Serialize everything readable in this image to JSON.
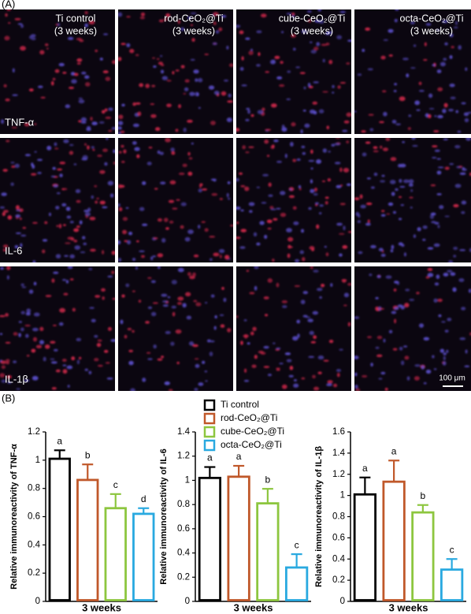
{
  "panel_labels": [
    "(A)",
    "(B)"
  ],
  "micrographs": {
    "columns": [
      {
        "name": "Ti control",
        "time": "(3 weeks)"
      },
      {
        "name": "rod-CeO₂@Ti",
        "time": "(3 weeks)"
      },
      {
        "name": "cube-CeO₂@Ti",
        "time": "(3 weeks)"
      },
      {
        "name": "octa-CeO₂@Ti",
        "time": "(3 weeks)"
      }
    ],
    "rows": [
      "TNF-α",
      "IL-6",
      "IL-1β"
    ],
    "scale_bar": "100 μm"
  },
  "chart_data": [
    {
      "type": "bar",
      "y_label": "Relative immunoreactivity of TNF-α",
      "x_label": "3 weeks",
      "ylim": [
        0,
        1.2
      ],
      "yticks": [
        0,
        0.2,
        0.4,
        0.6,
        0.8,
        1,
        1.2
      ],
      "series": [
        {
          "color": "#000000",
          "values": [
            1.01
          ],
          "errors": [
            0.06
          ],
          "letters": [
            "a"
          ]
        },
        {
          "color": "#c0582a",
          "values": [
            0.86
          ],
          "errors": [
            0.11
          ],
          "letters": [
            "b"
          ]
        },
        {
          "color": "#8dc63f",
          "values": [
            0.66
          ],
          "errors": [
            0.1
          ],
          "letters": [
            "c"
          ]
        },
        {
          "color": "#29a9e0",
          "values": [
            0.62
          ],
          "errors": [
            0.04
          ],
          "letters": [
            "d"
          ]
        }
      ]
    },
    {
      "type": "bar",
      "y_label": "Relative immunoreactivity of IL-6",
      "x_label": "3 weeks",
      "ylim": [
        0,
        1.4
      ],
      "yticks": [
        0,
        0.2,
        0.4,
        0.6,
        0.8,
        1,
        1.2,
        1.4
      ],
      "series": [
        {
          "name": "Ti control",
          "color": "#000000",
          "values": [
            1.02
          ],
          "errors": [
            0.09
          ],
          "letters": [
            "a"
          ]
        },
        {
          "name": "rod-CeO₂@Ti",
          "color": "#c0582a",
          "values": [
            1.03
          ],
          "errors": [
            0.09
          ],
          "letters": [
            "a"
          ]
        },
        {
          "name": "cube-CeO₂@Ti",
          "color": "#8dc63f",
          "values": [
            0.81
          ],
          "errors": [
            0.12
          ],
          "letters": [
            "b"
          ]
        },
        {
          "name": "octa-CeO₂@Ti",
          "color": "#29a9e0",
          "values": [
            0.28
          ],
          "errors": [
            0.11
          ],
          "letters": [
            "c"
          ]
        }
      ]
    },
    {
      "type": "bar",
      "y_label": "Relative immunoreactivity of IL-1β",
      "x_label": "3 weeks",
      "ylim": [
        0,
        1.6
      ],
      "yticks": [
        0,
        0.2,
        0.4,
        0.6,
        0.8,
        1,
        1.2,
        1.4,
        1.6
      ],
      "series": [
        {
          "color": "#000000",
          "values": [
            1.01
          ],
          "errors": [
            0.16
          ],
          "letters": [
            "a"
          ]
        },
        {
          "color": "#c0582a",
          "values": [
            1.13
          ],
          "errors": [
            0.2
          ],
          "letters": [
            "a"
          ]
        },
        {
          "color": "#8dc63f",
          "values": [
            0.84
          ],
          "errors": [
            0.07
          ],
          "letters": [
            "b"
          ]
        },
        {
          "color": "#29a9e0",
          "values": [
            0.3
          ],
          "errors": [
            0.1
          ],
          "letters": [
            "c"
          ]
        }
      ]
    }
  ]
}
